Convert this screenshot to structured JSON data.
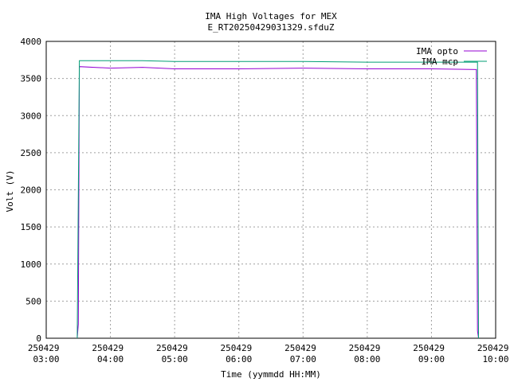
{
  "chart_data": {
    "type": "line",
    "title": "IMA High Voltages for MEX",
    "subtitle": "E_RT20250429031329.sfduZ",
    "x_label": "Time (yymmdd HH:MM)",
    "y_label": "Volt (V)",
    "xlim": [
      "250429 03:00",
      "250429 10:00"
    ],
    "xticks": [
      "250429 03:00",
      "250429 04:00",
      "250429 05:00",
      "250429 06:00",
      "250429 07:00",
      "250429 08:00",
      "250429 09:00",
      "250429 10:00"
    ],
    "ylim": [
      0,
      4000
    ],
    "yticks": [
      0,
      500,
      1000,
      1500,
      2000,
      2500,
      3000,
      3500,
      4000
    ],
    "grid": true,
    "legend": "top-right",
    "series": [
      {
        "name": "IMA opto",
        "color": "#9400d3",
        "x": [
          "250429 03:29",
          "250429 03:30",
          "250429 03:31",
          "250429 04:00",
          "250429 04:30",
          "250429 05:00",
          "250429 06:00",
          "250429 07:00",
          "250429 08:00",
          "250429 09:00",
          "250429 09:42",
          "250429 09:43",
          "250429 09:44"
        ],
        "values": [
          0,
          190,
          3660,
          3640,
          3650,
          3630,
          3630,
          3640,
          3630,
          3630,
          3620,
          100,
          0
        ]
      },
      {
        "name": "IMA mcp",
        "color": "#009e73",
        "x": [
          "250429 03:29",
          "250429 03:31",
          "250429 04:00",
          "250429 04:30",
          "250429 05:00",
          "250429 06:00",
          "250429 07:00",
          "250429 08:00",
          "250429 09:00",
          "250429 09:43",
          "250429 09:44"
        ],
        "values": [
          0,
          3740,
          3740,
          3740,
          3730,
          3730,
          3730,
          3720,
          3720,
          3720,
          0
        ]
      }
    ]
  }
}
